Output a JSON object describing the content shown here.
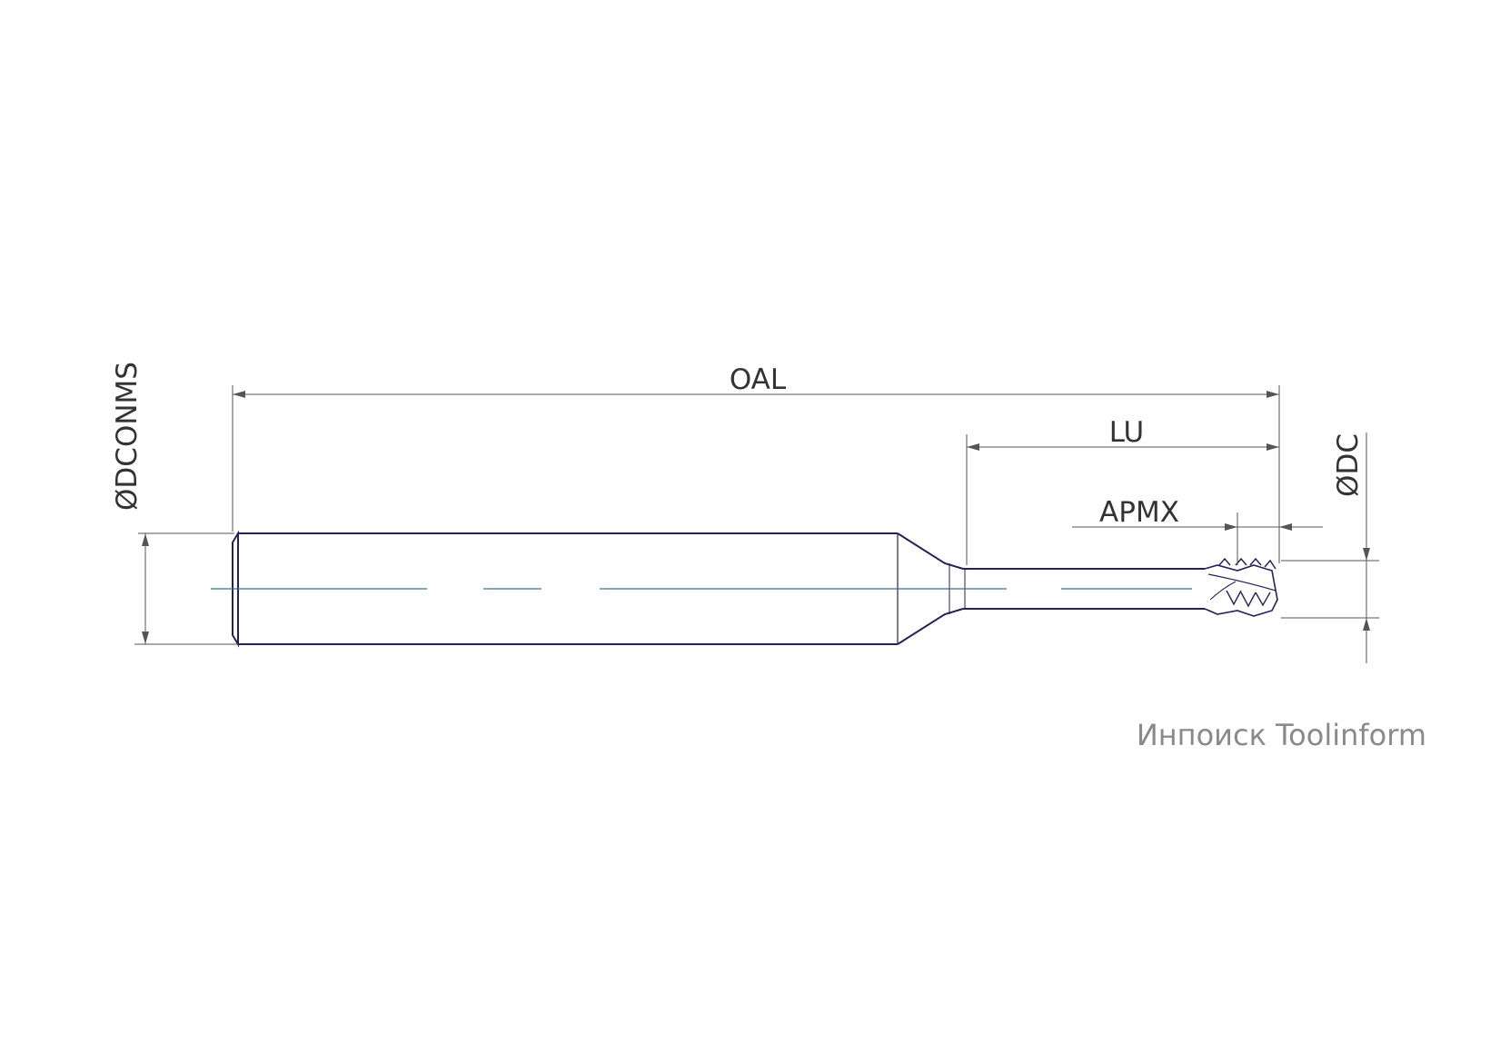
{
  "labels": {
    "oal": "OAL",
    "lu": "LU",
    "apmx": "APMX",
    "dc": "ØDC",
    "dconms": "ØDCONMS"
  },
  "watermark": "Инпоиск Toolinform",
  "colors": {
    "outline": "#23235a",
    "centerline": "#3b6e8c",
    "dimension": "#555555",
    "watermark": "#8a8a8a"
  }
}
